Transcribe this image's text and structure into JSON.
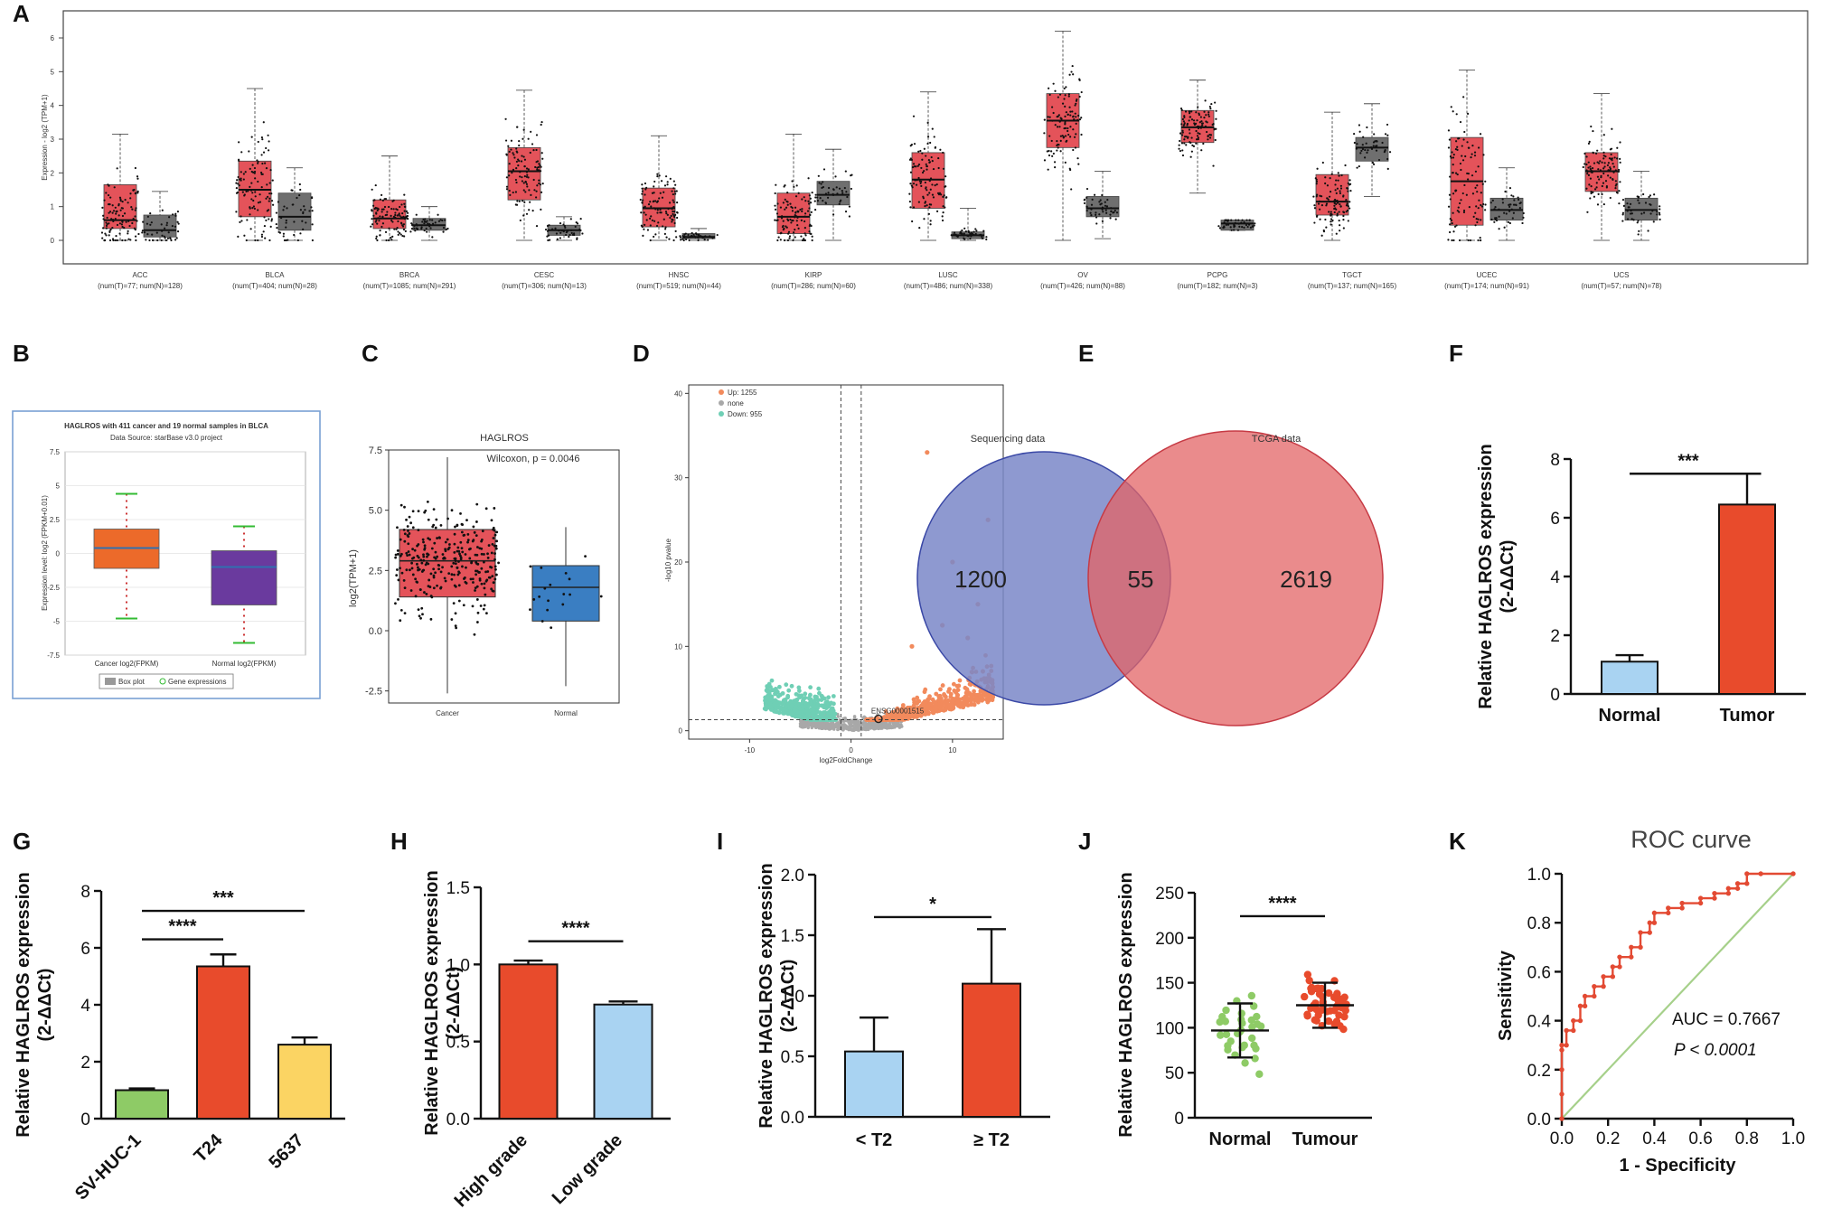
{
  "figure": {
    "panels": [
      "A",
      "B",
      "C",
      "D",
      "E",
      "F",
      "G",
      "H",
      "I",
      "J",
      "K"
    ]
  },
  "chart_data": [
    {
      "panel": "A",
      "type": "box",
      "ylabel": "Expression - log2 (TPM+1)",
      "ylim": [
        0,
        6
      ],
      "yticks": [
        "0",
        "1",
        "2",
        "3",
        "4",
        "5",
        "6"
      ],
      "categories": [
        "ACC",
        "BLCA",
        "BRCA",
        "CESC",
        "HNSC",
        "KIRP",
        "LUSC",
        "OV",
        "PCPG",
        "TGCT",
        "UCEC",
        "UCS"
      ],
      "counts": [
        "(num(T)=77; num(N)=128)",
        "(num(T)=404; num(N)=28)",
        "(num(T)=1085; num(N)=291)",
        "(num(T)=306; num(N)=13)",
        "(num(T)=519; num(N)=44)",
        "(num(T)=286; num(N)=60)",
        "(num(T)=486; num(N)=338)",
        "(num(T)=426; num(N)=88)",
        "(num(T)=182; num(N)=3)",
        "(num(T)=137; num(N)=165)",
        "(num(T)=174; num(N)=91)",
        "(num(T)=57; num(N)=78)"
      ],
      "tumor": [
        [
          0.35,
          0.6,
          1.65,
          0,
          3.15
        ],
        [
          0.7,
          1.5,
          2.35,
          0,
          4.5
        ],
        [
          0.35,
          0.65,
          1.2,
          0,
          2.5
        ],
        [
          1.2,
          2.05,
          2.75,
          0,
          4.45
        ],
        [
          0.4,
          0.95,
          1.55,
          0,
          3.1
        ],
        [
          0.2,
          0.7,
          1.4,
          0,
          3.15
        ],
        [
          0.95,
          1.8,
          2.6,
          0,
          4.4
        ],
        [
          2.75,
          3.55,
          4.35,
          0,
          6.2
        ],
        [
          2.9,
          3.35,
          3.85,
          1.4,
          4.75
        ],
        [
          0.75,
          1.15,
          1.95,
          0,
          3.8
        ],
        [
          0.45,
          1.75,
          3.05,
          0,
          5.05
        ],
        [
          1.45,
          2.05,
          2.6,
          0,
          4.35
        ]
      ],
      "normal": [
        [
          0.1,
          0.3,
          0.75,
          0,
          1.45
        ],
        [
          0.3,
          0.7,
          1.4,
          0,
          2.15
        ],
        [
          0.3,
          0.45,
          0.65,
          0,
          1.0
        ],
        [
          0.15,
          0.3,
          0.45,
          0,
          0.7
        ],
        [
          0.05,
          0.1,
          0.2,
          0,
          0.35
        ],
        [
          1.05,
          1.35,
          1.75,
          0,
          2.7
        ],
        [
          0.05,
          0.15,
          0.25,
          0,
          0.95
        ],
        [
          0.7,
          0.95,
          1.3,
          0.05,
          2.05
        ],
        [
          0.3,
          0.5,
          0.6,
          0.3,
          0.6
        ],
        [
          2.35,
          2.75,
          3.05,
          1.3,
          4.05
        ],
        [
          0.6,
          0.9,
          1.25,
          0,
          2.15
        ],
        [
          0.6,
          0.9,
          1.25,
          0,
          2.05
        ]
      ]
    },
    {
      "panel": "B",
      "type": "box",
      "title": "HAGLROS with 411 cancer and 19 normal samples in BLCA",
      "subtitle": "Data Source: starBase v3.0 project",
      "ylabel": "Expression level: log2 (FPKM+0.01)",
      "yticks": [
        "7.5",
        "5",
        "2.5",
        "0",
        "-2.5",
        "-5",
        "-7.5"
      ],
      "ylim": [
        -7.5,
        7.5
      ],
      "categories": [
        "Cancer log2(FPKM)",
        "Normal log2(FPKM)"
      ],
      "boxes": [
        [
          -4.8,
          -1.1,
          0.4,
          1.8,
          4.4
        ],
        [
          -6.6,
          -3.8,
          -1.0,
          0.2,
          2.0
        ]
      ],
      "legend": [
        "Box plot",
        "Gene expressions"
      ]
    },
    {
      "panel": "C",
      "type": "box",
      "title": "HAGLROS",
      "annotation": "Wilcoxon, p = 0.0046",
      "ylabel": "log2(TPM+1)",
      "yticks": [
        "7.5",
        "5.0",
        "2.5",
        "0.0",
        "-2.5"
      ],
      "ylim": [
        -3,
        7.5
      ],
      "categories": [
        "Cancer",
        "Normal"
      ],
      "boxes": [
        [
          -2.6,
          1.4,
          2.9,
          4.2,
          7.2
        ],
        [
          -2.3,
          0.4,
          1.8,
          2.7,
          4.3
        ]
      ]
    },
    {
      "panel": "D",
      "type": "scatter",
      "xlabel": "log2FoldChange",
      "ylabel": "-log10 pvalue",
      "xticks": [
        "-10",
        "0",
        "10"
      ],
      "yticks": [
        "0",
        "10",
        "20",
        "30",
        "40"
      ],
      "xlim": [
        -16,
        15
      ],
      "ylim": [
        -1,
        41
      ],
      "legend": [
        "Up: 1255",
        "none",
        "Down: 955"
      ],
      "annotation": "ENSG00001515"
    },
    {
      "panel": "E",
      "type": "venn",
      "sets": [
        "Sequencing data",
        "TCGA data"
      ],
      "values": [
        "1200",
        "55",
        "2619"
      ]
    },
    {
      "panel": "F",
      "type": "bar",
      "ylabel": "Relative HAGLROS expression",
      "yunit": "(2-ΔΔCt)",
      "categories": [
        "Normal",
        "Tumor"
      ],
      "values": [
        1.1,
        6.45
      ],
      "errors": [
        0.22,
        1.05
      ],
      "ylim": [
        0,
        8
      ],
      "yticks": [
        "0",
        "2",
        "4",
        "6",
        "8"
      ],
      "significance": [
        "***"
      ]
    },
    {
      "panel": "G",
      "type": "bar",
      "ylabel": "Relative HAGLROS expression",
      "yunit": "(2-ΔΔCt)",
      "categories": [
        "SV-HUC-1",
        "T24",
        "5637"
      ],
      "values": [
        1.0,
        5.35,
        2.6
      ],
      "errors": [
        0.06,
        0.42,
        0.25
      ],
      "ylim": [
        0,
        8
      ],
      "yticks": [
        "0",
        "2",
        "4",
        "6",
        "8"
      ],
      "significance": [
        "****",
        "***"
      ]
    },
    {
      "panel": "H",
      "type": "bar",
      "ylabel": "Relative HAGLROS expression",
      "yunit": "(2-ΔΔCt)",
      "categories": [
        "High grade",
        "Low grade"
      ],
      "values": [
        1.0,
        0.74
      ],
      "errors": [
        0.025,
        0.02
      ],
      "ylim": [
        0,
        1.5
      ],
      "yticks": [
        "0.0",
        "0.5",
        "1.0",
        "1.5"
      ],
      "significance": [
        "****"
      ]
    },
    {
      "panel": "I",
      "type": "bar",
      "ylabel": "Relative HAGLROS expression",
      "yunit": "(2-ΔΔCt)",
      "categories": [
        "< T2",
        "≥ T2"
      ],
      "values": [
        0.54,
        1.1
      ],
      "errors": [
        0.28,
        0.45
      ],
      "ylim": [
        0,
        2.0
      ],
      "yticks": [
        "0.0",
        "0.5",
        "1.0",
        "1.5",
        "2.0"
      ],
      "significance": [
        "*"
      ]
    },
    {
      "panel": "J",
      "type": "scatter",
      "ylabel": "Relative HAGLROS expression",
      "categories": [
        "Normal",
        "Tumour"
      ],
      "means": [
        97,
        125
      ],
      "sd": [
        30,
        25
      ],
      "ylim": [
        0,
        250
      ],
      "yticks": [
        "0",
        "50",
        "100",
        "150",
        "200",
        "250"
      ],
      "significance": [
        "****"
      ]
    },
    {
      "panel": "K",
      "type": "line",
      "title": "ROC curve",
      "xlabel": "1 - Specificity",
      "ylabel": "Sensitivity",
      "xticks": [
        "0.0",
        "0.2",
        "0.4",
        "0.6",
        "0.8",
        "1.0"
      ],
      "yticks": [
        "0.0",
        "0.2",
        "0.4",
        "0.6",
        "0.8",
        "1.0"
      ],
      "auc_text": "AUC = 0.7667",
      "p_text": "P < 0.0001",
      "fpr": [
        0,
        0,
        0,
        0,
        0,
        0.02,
        0.02,
        0.05,
        0.05,
        0.08,
        0.08,
        0.1,
        0.1,
        0.14,
        0.14,
        0.18,
        0.18,
        0.22,
        0.22,
        0.25,
        0.25,
        0.3,
        0.3,
        0.34,
        0.34,
        0.38,
        0.38,
        0.4,
        0.4,
        0.46,
        0.46,
        0.52,
        0.52,
        0.6,
        0.6,
        0.66,
        0.66,
        0.72,
        0.72,
        0.76,
        0.76,
        0.8,
        0.8,
        0.86,
        1.0
      ],
      "tpr": [
        0,
        0.1,
        0.2,
        0.28,
        0.3,
        0.3,
        0.36,
        0.36,
        0.4,
        0.4,
        0.46,
        0.46,
        0.5,
        0.5,
        0.54,
        0.54,
        0.58,
        0.58,
        0.62,
        0.62,
        0.66,
        0.66,
        0.7,
        0.7,
        0.76,
        0.76,
        0.8,
        0.8,
        0.84,
        0.84,
        0.86,
        0.86,
        0.88,
        0.88,
        0.9,
        0.9,
        0.92,
        0.92,
        0.94,
        0.94,
        0.96,
        0.96,
        1.0,
        1.0,
        1.0
      ]
    }
  ]
}
